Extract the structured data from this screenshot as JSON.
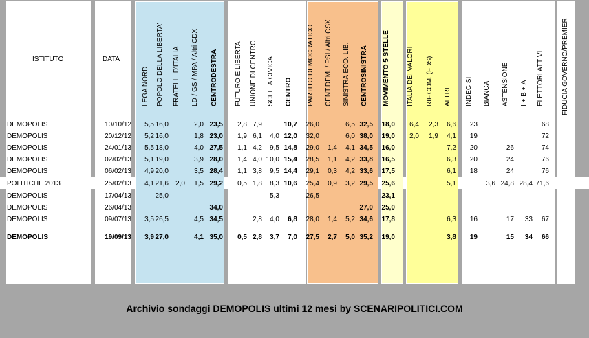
{
  "panels": [
    {
      "name": "panel-istituto",
      "color": "#ffffff"
    },
    {
      "name": "panel-data",
      "color": "#ffffff"
    },
    {
      "name": "panel-centrodestra",
      "color": "#c5e3f0"
    },
    {
      "name": "panel-centro",
      "color": "#ffffff"
    },
    {
      "name": "panel-centrosinistra",
      "color": "#f8c08c"
    },
    {
      "name": "panel-m5s",
      "color": "#ffffcc"
    },
    {
      "name": "panel-altri",
      "color": "#ffff99"
    },
    {
      "name": "panel-astensione",
      "color": "#ffffff"
    },
    {
      "name": "panel-fiducia",
      "color": "#ffffff"
    }
  ],
  "headers": {
    "istituto": "ISTITUTO",
    "data": "DATA",
    "columns": [
      {
        "label": "LEGA NORD",
        "bold": false
      },
      {
        "label": "POPOLO DELLA LIBERTA'",
        "bold": false
      },
      {
        "label": "FRATELLI D'ITALIA",
        "bold": false
      },
      {
        "label": "LD / GS / MPA / Altri CDX",
        "bold": false
      },
      {
        "label": "CENTRODESTRA",
        "bold": true
      },
      {
        "label": "FUTURO E LIBERTA'",
        "bold": false
      },
      {
        "label": "UNIONE DI CENTRO",
        "bold": false
      },
      {
        "label": "SCELTA CIVICA",
        "bold": false
      },
      {
        "label": "CENTRO",
        "bold": true
      },
      {
        "label": "PARTITO DEMOCRATICO",
        "bold": false
      },
      {
        "label": "CENT.DEM. / PSI / Altri CSX",
        "bold": false
      },
      {
        "label": "SINISTRA ECO. LIB.",
        "bold": false
      },
      {
        "label": "CENTROSINISTRA",
        "bold": true
      },
      {
        "label": "MOVIMENTO 5 STELLE",
        "bold": true
      },
      {
        "label": "ITALIA DEI VALORI",
        "bold": false
      },
      {
        "label": "RIF.COM. (FDS)",
        "bold": false
      },
      {
        "label": "ALTRI",
        "bold": false
      },
      {
        "label": "INDECISI",
        "bold": false
      },
      {
        "label": "BIANCA",
        "bold": false
      },
      {
        "label": "ASTENSIONE",
        "bold": false
      },
      {
        "label": "I + B + A",
        "bold": false
      },
      {
        "label": "ELETTORI ATTIVI",
        "bold": false
      },
      {
        "label": "FIDUCIA GOVERNO/PREMIER",
        "bold": false
      }
    ]
  },
  "rows": [
    {
      "istituto": "DEMOPOLIS",
      "data": "10/10/12",
      "bold": false,
      "values": [
        "5,5",
        "16,0",
        "",
        "2,0",
        "23,5",
        "2,8",
        "7,9",
        "",
        "10,7",
        "26,0",
        "",
        "6,5",
        "32,5",
        "18,0",
        "6,4",
        "2,3",
        "6,6",
        "23",
        "",
        "",
        "",
        "68",
        ""
      ]
    },
    {
      "istituto": "DEMOPOLIS",
      "data": "20/12/12",
      "bold": false,
      "values": [
        "5,2",
        "16,0",
        "",
        "1,8",
        "23,0",
        "1,9",
        "6,1",
        "4,0",
        "12,0",
        "32,0",
        "",
        "6,0",
        "38,0",
        "19,0",
        "2,0",
        "1,9",
        "4,1",
        "19",
        "",
        "",
        "",
        "72",
        ""
      ]
    },
    {
      "istituto": "DEMOPOLIS",
      "data": "24/01/13",
      "bold": false,
      "values": [
        "5,5",
        "18,0",
        "",
        "4,0",
        "27,5",
        "1,1",
        "4,2",
        "9,5",
        "14,8",
        "29,0",
        "1,4",
        "4,1",
        "34,5",
        "16,0",
        "",
        "",
        "7,2",
        "20",
        "",
        "26",
        "",
        "74",
        ""
      ]
    },
    {
      "istituto": "DEMOPOLIS",
      "data": "02/02/13",
      "bold": false,
      "values": [
        "5,1",
        "19,0",
        "",
        "3,9",
        "28,0",
        "1,4",
        "4,0",
        "10,0",
        "15,4",
        "28,5",
        "1,1",
        "4,2",
        "33,8",
        "16,5",
        "",
        "",
        "6,3",
        "20",
        "",
        "24",
        "",
        "76",
        ""
      ]
    },
    {
      "istituto": "DEMOPOLIS",
      "data": "06/02/13",
      "bold": false,
      "values": [
        "4,9",
        "20,0",
        "",
        "3,5",
        "28,4",
        "1,1",
        "3,8",
        "9,5",
        "14,4",
        "29,1",
        "0,3",
        "4,2",
        "33,6",
        "17,5",
        "",
        "",
        "6,1",
        "18",
        "",
        "24",
        "",
        "76",
        ""
      ]
    },
    {
      "istituto": "POLITICHE 2013",
      "data": "25/02/13",
      "bold": false,
      "values": [
        "4,1",
        "21,6",
        "2,0",
        "1,5",
        "29,2",
        "0,5",
        "1,8",
        "8,3",
        "10,6",
        "25,4",
        "0,9",
        "3,2",
        "29,5",
        "25,6",
        "",
        "",
        "5,1",
        "",
        "3,6",
        "24,8",
        "28,4",
        "71,6",
        ""
      ]
    },
    {
      "istituto": "DEMOPOLIS",
      "data": "17/04/13",
      "bold": false,
      "values": [
        "",
        "25,0",
        "",
        "",
        "",
        "",
        "",
        "5,3",
        "",
        "26,5",
        "",
        "",
        "",
        "23,1",
        "",
        "",
        "",
        "",
        "",
        "",
        "",
        "",
        ""
      ]
    },
    {
      "istituto": "DEMOPOLIS",
      "data": "26/04/13",
      "bold": false,
      "values": [
        "",
        "",
        "",
        "",
        "34,0",
        "",
        "",
        "",
        "",
        "",
        "",
        "",
        "27,0",
        "25,0",
        "",
        "",
        "",
        "",
        "",
        "",
        "",
        "",
        ""
      ]
    },
    {
      "istituto": "DEMOPOLIS",
      "data": "09/07/13",
      "bold": false,
      "values": [
        "3,5",
        "26,5",
        "",
        "4,5",
        "34,5",
        "",
        "2,8",
        "4,0",
        "6,8",
        "28,0",
        "1,4",
        "5,2",
        "34,6",
        "17,8",
        "",
        "",
        "6,3",
        "16",
        "",
        "17",
        "33",
        "67",
        ""
      ]
    },
    {
      "istituto": "DEMOPOLIS",
      "data": "19/09/13",
      "bold": true,
      "values": [
        "3,9",
        "27,0",
        "",
        "4,1",
        "35,0",
        "0,5",
        "2,8",
        "3,7",
        "7,0",
        "27,5",
        "2,7",
        "5,0",
        "35,2",
        "19,0",
        "",
        "",
        "3,8",
        "19",
        "",
        "15",
        "34",
        "66",
        ""
      ]
    }
  ],
  "footer": "Archivio sondaggi DEMOPOLIS ultimi 12 mesi by SCENARIPOLITICI.COM"
}
